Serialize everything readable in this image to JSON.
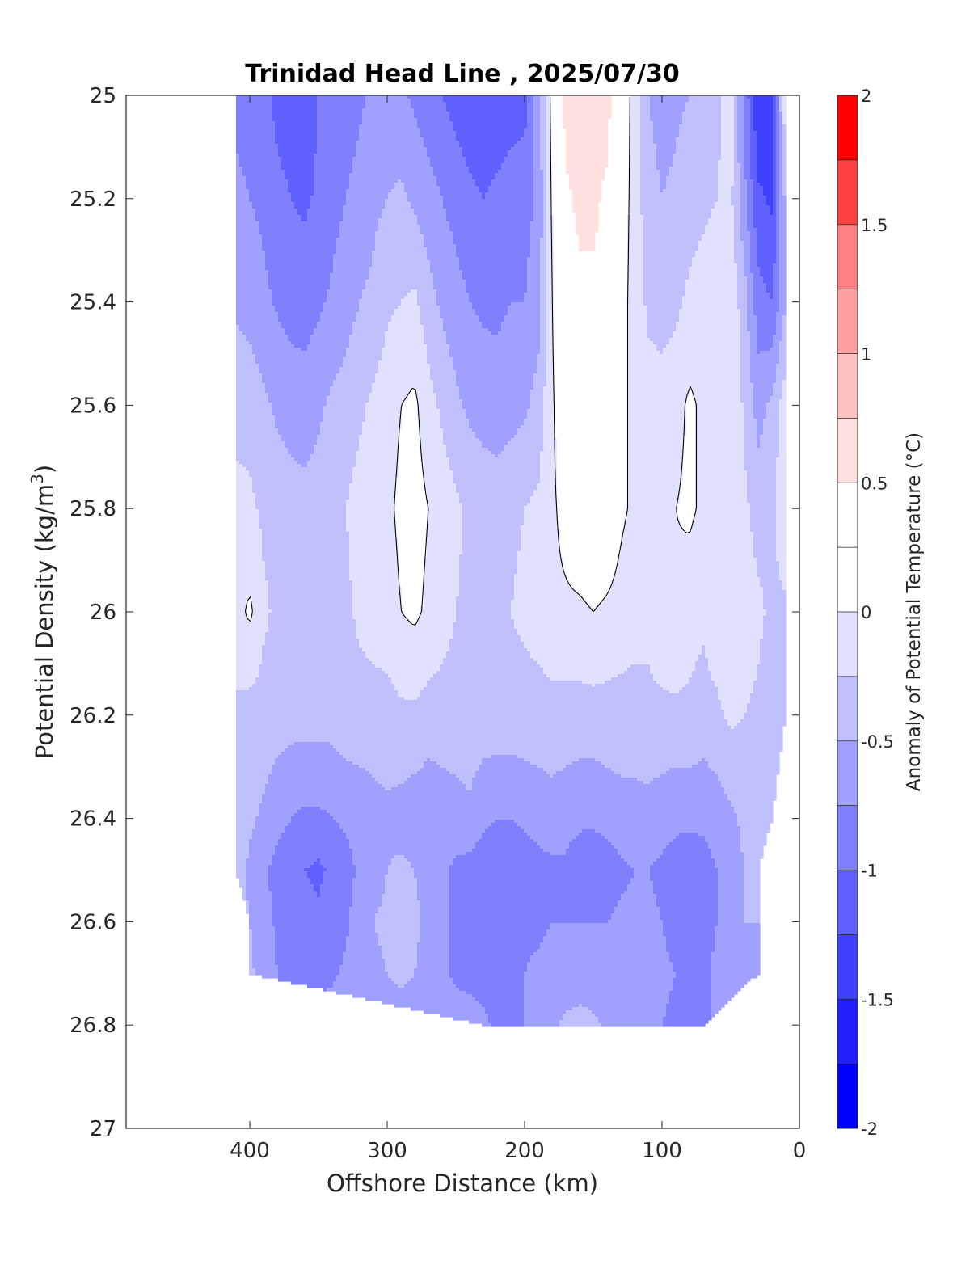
{
  "chart_data": {
    "type": "contour",
    "title": "Trinidad Head Line , 2025/07/30",
    "xlabel": "Offshore Distance (km)",
    "ylabel_main": "Potential Density (kg/m",
    "ylabel_sup": "3",
    "ylabel_close": ")",
    "xlim": [
      490,
      0
    ],
    "ylim": [
      25,
      27
    ],
    "y_reversed": true,
    "x_ticks": [
      400,
      300,
      200,
      100,
      0
    ],
    "x_tick_labels": [
      "400",
      "300",
      "200",
      "100",
      "0"
    ],
    "y_ticks": [
      25,
      25.2,
      25.4,
      25.6,
      25.8,
      26,
      26.2,
      26.4,
      26.6,
      26.8,
      27
    ],
    "y_tick_labels": [
      "25",
      "25.2",
      "25.4",
      "25.6",
      "25.8",
      "26",
      "26.2",
      "26.4",
      "26.6",
      "26.8",
      "27"
    ],
    "colorbar": {
      "label": "Anomaly of Potential Temperature (°C)",
      "range": [
        -2,
        2
      ],
      "step": 0.25,
      "ticks": [
        -2,
        -1.5,
        -1,
        -0.5,
        0,
        0.5,
        1,
        1.5,
        2
      ],
      "tick_labels": [
        "-2",
        "-1.5",
        "-1",
        "-0.5",
        "0",
        "0.5",
        "1",
        "1.5",
        "2"
      ],
      "colors": [
        "#0000ff",
        "#2020ff",
        "#4040ff",
        "#6060ff",
        "#8080ff",
        "#a0a0ff",
        "#c0c0ff",
        "#e0e0ff",
        "#ffffff",
        "#ffffff",
        "#ffe0e0",
        "#ffc0c0",
        "#ffa0a0",
        "#ff8080",
        "#ff4040",
        "#ff0000"
      ]
    },
    "data_extent": {
      "x": [
        410,
        10
      ],
      "y": [
        25,
        26.8
      ]
    },
    "stations_km": [
      410,
      400,
      390,
      380,
      370,
      360,
      350,
      340,
      330,
      320,
      310,
      300,
      290,
      280,
      270,
      260,
      250,
      240,
      230,
      220,
      210,
      200,
      190,
      180,
      170,
      160,
      150,
      140,
      130,
      120,
      110,
      100,
      90,
      80,
      70,
      60,
      50,
      40,
      30,
      20,
      10
    ],
    "density_levels": [
      25,
      25.2,
      25.4,
      25.6,
      25.8,
      26,
      26.2,
      26.4,
      26.5,
      26.6,
      26.7,
      26.8
    ],
    "anomaly_grid": [
      [
        -0.8,
        -0.85,
        -0.9,
        -1.1,
        -1.2,
        -1.15,
        -1.0,
        -0.95,
        -0.9,
        -0.8,
        -0.7,
        -0.65,
        -0.7,
        -0.8,
        -0.9,
        -1.0,
        -1.1,
        -1.15,
        -1.2,
        -1.15,
        -1.1,
        -1.1,
        -0.6,
        0.1,
        0.6,
        0.7,
        0.55,
        0.6,
        0.2,
        -0.1,
        -0.5,
        -0.6,
        -0.55,
        -0.5,
        -0.4,
        -0.3,
        -0.1,
        -0.8,
        -1.5,
        -1.3,
        0.0
      ],
      [
        -0.7,
        -0.75,
        -0.8,
        -0.9,
        -1.0,
        -1.05,
        -0.95,
        -0.85,
        -0.75,
        -0.65,
        -0.55,
        -0.5,
        -0.45,
        -0.55,
        -0.65,
        -0.75,
        -0.85,
        -0.95,
        -1.0,
        -0.95,
        -0.9,
        -0.85,
        -0.7,
        0.05,
        0.45,
        0.55,
        0.55,
        0.45,
        0.15,
        -0.1,
        -0.4,
        -0.5,
        -0.45,
        -0.35,
        -0.3,
        -0.25,
        -0.2,
        -0.7,
        -1.2,
        -1.3,
        -0.4
      ],
      [
        -0.55,
        -0.6,
        -0.7,
        -0.78,
        -0.85,
        -0.85,
        -0.8,
        -0.7,
        -0.6,
        -0.5,
        -0.45,
        -0.3,
        -0.25,
        -0.2,
        -0.4,
        -0.55,
        -0.65,
        -0.75,
        -0.8,
        -0.8,
        -0.75,
        -0.75,
        -0.6,
        0.0,
        0.4,
        0.45,
        0.45,
        0.4,
        0.1,
        -0.1,
        -0.3,
        -0.35,
        -0.3,
        -0.2,
        -0.15,
        -0.1,
        -0.05,
        -0.4,
        -0.9,
        -1.0,
        -0.5
      ],
      [
        -0.3,
        -0.35,
        -0.45,
        -0.55,
        -0.6,
        -0.65,
        -0.55,
        -0.45,
        -0.4,
        -0.3,
        -0.2,
        -0.1,
        0.0,
        0.05,
        -0.15,
        -0.3,
        -0.45,
        -0.55,
        -0.6,
        -0.65,
        -0.6,
        -0.55,
        -0.4,
        -0.05,
        0.3,
        0.4,
        0.4,
        0.35,
        0.1,
        -0.1,
        -0.15,
        -0.15,
        -0.1,
        0.05,
        -0.05,
        -0.1,
        0.0,
        -0.3,
        -0.6,
        -0.45,
        -0.1
      ],
      [
        -0.2,
        -0.2,
        -0.3,
        -0.35,
        -0.4,
        -0.4,
        -0.38,
        -0.3,
        -0.25,
        -0.15,
        -0.1,
        -0.05,
        0.05,
        0.1,
        0.0,
        -0.1,
        -0.2,
        -0.3,
        -0.35,
        -0.35,
        -0.3,
        -0.25,
        -0.2,
        -0.05,
        0.1,
        0.25,
        0.3,
        0.25,
        0.05,
        -0.05,
        -0.1,
        -0.1,
        0.0,
        0.05,
        -0.05,
        -0.1,
        0.0,
        -0.2,
        -0.35,
        -0.3,
        -0.05
      ],
      [
        -0.1,
        0.05,
        -0.2,
        -0.3,
        -0.35,
        -0.25,
        -0.3,
        -0.3,
        -0.3,
        -0.2,
        -0.15,
        -0.1,
        0.0,
        0.05,
        -0.05,
        -0.15,
        -0.25,
        -0.3,
        -0.3,
        -0.3,
        -0.25,
        -0.2,
        -0.15,
        -0.05,
        -0.05,
        -0.05,
        0.0,
        -0.05,
        -0.1,
        -0.15,
        -0.2,
        -0.1,
        -0.05,
        -0.15,
        -0.2,
        -0.1,
        0.0,
        -0.1,
        -0.2,
        -0.3,
        -0.3
      ],
      [
        -0.3,
        -0.35,
        -0.35,
        -0.4,
        -0.4,
        -0.4,
        -0.4,
        -0.4,
        -0.35,
        -0.35,
        -0.35,
        -0.35,
        -0.3,
        -0.3,
        -0.35,
        -0.35,
        -0.35,
        -0.35,
        -0.35,
        -0.35,
        -0.35,
        -0.35,
        -0.35,
        -0.35,
        -0.35,
        -0.35,
        -0.35,
        -0.35,
        -0.35,
        -0.35,
        -0.3,
        -0.3,
        -0.3,
        -0.3,
        -0.35,
        -0.3,
        -0.2,
        -0.25,
        -0.3,
        -0.4,
        -0.4
      ],
      [
        -0.35,
        -0.45,
        -0.55,
        -0.65,
        -0.75,
        -0.8,
        -0.8,
        -0.75,
        -0.7,
        -0.65,
        -0.6,
        -0.55,
        -0.6,
        -0.65,
        -0.7,
        -0.65,
        -0.6,
        -0.55,
        -0.7,
        -0.75,
        -0.75,
        -0.7,
        -0.65,
        -0.6,
        -0.65,
        -0.7,
        -0.7,
        -0.65,
        -0.6,
        -0.6,
        -0.6,
        -0.65,
        -0.7,
        -0.7,
        -0.7,
        -0.65,
        -0.55,
        -0.45,
        -0.45,
        -0.4,
        -0.4
      ],
      [
        -0.4,
        -0.55,
        -0.7,
        -0.85,
        -0.95,
        -1.0,
        -1.05,
        -0.95,
        -0.85,
        -0.7,
        -0.6,
        -0.5,
        -0.45,
        -0.5,
        -0.6,
        -0.7,
        -0.8,
        -0.85,
        -0.9,
        -0.95,
        -0.95,
        -0.9,
        -0.85,
        -0.8,
        -0.8,
        -0.9,
        -0.95,
        -0.9,
        -0.8,
        -0.75,
        -0.75,
        -0.8,
        -0.85,
        -0.9,
        -0.85,
        -0.75,
        -0.6,
        -0.5,
        -0.45,
        -0.4,
        -0.4
      ],
      [
        -0.4,
        -0.5,
        -0.65,
        -0.8,
        -0.95,
        -0.9,
        -0.95,
        -0.9,
        -0.8,
        -0.6,
        -0.5,
        -0.45,
        -0.4,
        -0.45,
        -0.55,
        -0.7,
        -0.8,
        -0.9,
        -0.9,
        -0.9,
        -0.85,
        -0.8,
        -0.8,
        -0.75,
        -0.75,
        -0.75,
        -0.75,
        -0.75,
        -0.7,
        -0.7,
        -0.7,
        -0.75,
        -0.85,
        -0.9,
        -0.85,
        -0.75,
        -0.6,
        -0.5,
        -0.5,
        -0.5,
        -0.5
      ],
      [
        -0.4,
        -0.45,
        -0.6,
        -0.75,
        -0.9,
        -0.85,
        -0.85,
        -0.8,
        -0.7,
        -0.6,
        -0.55,
        -0.5,
        -0.45,
        -0.5,
        -0.6,
        -0.7,
        -0.8,
        -0.85,
        -0.85,
        -0.85,
        -0.8,
        -0.75,
        -0.7,
        -0.65,
        -0.65,
        -0.65,
        -0.65,
        -0.65,
        -0.65,
        -0.65,
        -0.65,
        -0.7,
        -0.75,
        -0.8,
        -0.8,
        -0.7,
        -0.6,
        -0.55,
        -0.55,
        -0.55,
        -0.55
      ],
      [
        -0.4,
        -0.45,
        -0.55,
        -0.6,
        -0.6,
        -0.6,
        -0.6,
        -0.6,
        -0.6,
        -0.6,
        -0.6,
        -0.6,
        -0.6,
        -0.6,
        -0.6,
        -0.6,
        -0.6,
        -0.6,
        -0.7,
        -0.8,
        -0.8,
        -0.75,
        -0.65,
        -0.55,
        -0.45,
        -0.4,
        -0.45,
        -0.55,
        -0.6,
        -0.65,
        -0.7,
        -0.75,
        -0.8,
        -0.85,
        -0.8,
        -0.7,
        -0.6,
        -0.55,
        -0.55,
        -0.55,
        -0.55
      ]
    ],
    "row_x_extent": [
      [
        410,
        10
      ],
      [
        410,
        10
      ],
      [
        410,
        10
      ],
      [
        410,
        10
      ],
      [
        410,
        10
      ],
      [
        410,
        10
      ],
      [
        410,
        10
      ],
      [
        410,
        20
      ],
      [
        410,
        30
      ],
      [
        400,
        30
      ],
      [
        400,
        30
      ],
      [
        230,
        70
      ]
    ]
  }
}
